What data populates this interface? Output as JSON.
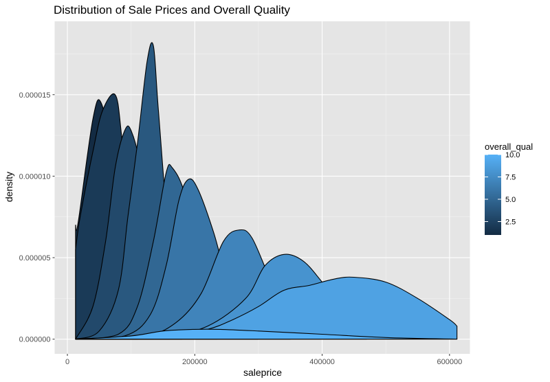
{
  "chart_data": {
    "type": "area",
    "title": "Distribution of Sale Prices and Overall Quality",
    "xlabel": "saleprice",
    "ylabel": "density",
    "xlim": [
      -20000,
      632000
    ],
    "ylim": [
      -9e-07,
      1.95e-05
    ],
    "x_ticks": [
      0,
      200000,
      400000,
      600000
    ],
    "x_tick_labels": [
      "0",
      "200000",
      "400000",
      "600000"
    ],
    "y_ticks": [
      0.0,
      5e-06,
      1e-05,
      1.5e-05
    ],
    "y_tick_labels": [
      "0.000000",
      "0.000005",
      "0.000010",
      "0.000015"
    ],
    "grid": true,
    "background": "#e5e5e5",
    "legend": {
      "title": "overall_qual",
      "position": "right",
      "type": "colorbar",
      "min": 1,
      "max": 10,
      "ticks": [
        2.5,
        5.0,
        7.5,
        10.0
      ],
      "tick_labels": [
        "2.5",
        "5.0",
        "7.5",
        "10.0"
      ],
      "low_color": "#132b43",
      "high_color": "#56b1f7"
    },
    "series": [
      {
        "qual": 1,
        "x": [
          12789,
          17000,
          40000,
          53000,
          70000,
          100000,
          110000
        ],
        "y": [
          7e-06,
          7.2e-06,
          1.35e-05,
          1.45e-05,
          1.1e-05,
          1.5e-06,
          3e-07
        ]
      },
      {
        "qual": 2,
        "x": [
          12789,
          20000,
          40000,
          55000,
          75000,
          85000,
          100000,
          135000
        ],
        "y": [
          5.5e-06,
          7.5e-06,
          1.15e-05,
          1.4e-05,
          1.5e-05,
          1.25e-05,
          6e-06,
          5e-07
        ]
      },
      {
        "qual": 3,
        "x": [
          12789,
          40000,
          60000,
          75000,
          90000,
          100000,
          115000,
          140000,
          160000
        ],
        "y": [
          0.0,
          2e-06,
          6e-06,
          1.05e-05,
          1.28e-05,
          1.28e-05,
          1.05e-05,
          4e-06,
          1e-06
        ]
      },
      {
        "qual": 4,
        "x": [
          12789,
          50000,
          80000,
          95000,
          110000,
          125000,
          135000,
          143000,
          160000,
          180000
        ],
        "y": [
          0.0,
          5e-07,
          3e-06,
          7.5e-06,
          1.2e-05,
          1.7e-05,
          1.8e-05,
          1.4e-05,
          6e-06,
          1.5e-06
        ]
      },
      {
        "qual": 5,
        "x": [
          12789,
          80000,
          110000,
          135000,
          155000,
          165000,
          185000,
          210000,
          235000
        ],
        "y": [
          0.0,
          3e-07,
          2e-06,
          6e-06,
          1.02e-05,
          1.05e-05,
          8.8e-06,
          4e-06,
          1e-06
        ]
      },
      {
        "qual": 6,
        "x": [
          12789,
          90000,
          130000,
          155000,
          175000,
          190000,
          205000,
          230000,
          260000,
          300000
        ],
        "y": [
          0.0,
          2e-07,
          1.5e-06,
          4.5e-06,
          8.5e-06,
          9.8e-06,
          9.2e-06,
          6.5e-06,
          2.5e-06,
          5e-07
        ]
      },
      {
        "qual": 7,
        "x": [
          12789,
          120000,
          170000,
          210000,
          245000,
          270000,
          290000,
          320000,
          350000
        ],
        "y": [
          0.0,
          2e-07,
          1e-06,
          2.8e-06,
          6e-06,
          6.7e-06,
          6.2e-06,
          3.5e-06,
          1e-06
        ]
      },
      {
        "qual": 8,
        "x": [
          12789,
          150000,
          220000,
          280000,
          310000,
          340000,
          370000,
          400000,
          440000,
          470000
        ],
        "y": [
          0.0,
          2e-07,
          8e-07,
          2.5e-06,
          4.5e-06,
          5.2e-06,
          4.8e-06,
          3.5e-06,
          1.5e-06,
          5e-07
        ]
      },
      {
        "qual": 9,
        "x": [
          12789,
          160000,
          220000,
          260000,
          300000,
          340000,
          380000,
          420000,
          450000,
          500000,
          550000,
          600000,
          611657
        ],
        "y": [
          0.0,
          2e-07,
          6e-07,
          1.2e-06,
          2e-06,
          3e-06,
          3.3e-06,
          3.7e-06,
          3.8e-06,
          3.5e-06,
          2.5e-06,
          1.2e-06,
          8e-07
        ]
      },
      {
        "qual": 10,
        "x": [
          12789,
          100000,
          150000,
          200000,
          240000,
          300000,
          400000,
          500000,
          611657
        ],
        "y": [
          0.0,
          2e-07,
          5e-07,
          6e-07,
          6e-07,
          5e-07,
          3e-07,
          1e-07,
          0.0
        ]
      }
    ]
  }
}
